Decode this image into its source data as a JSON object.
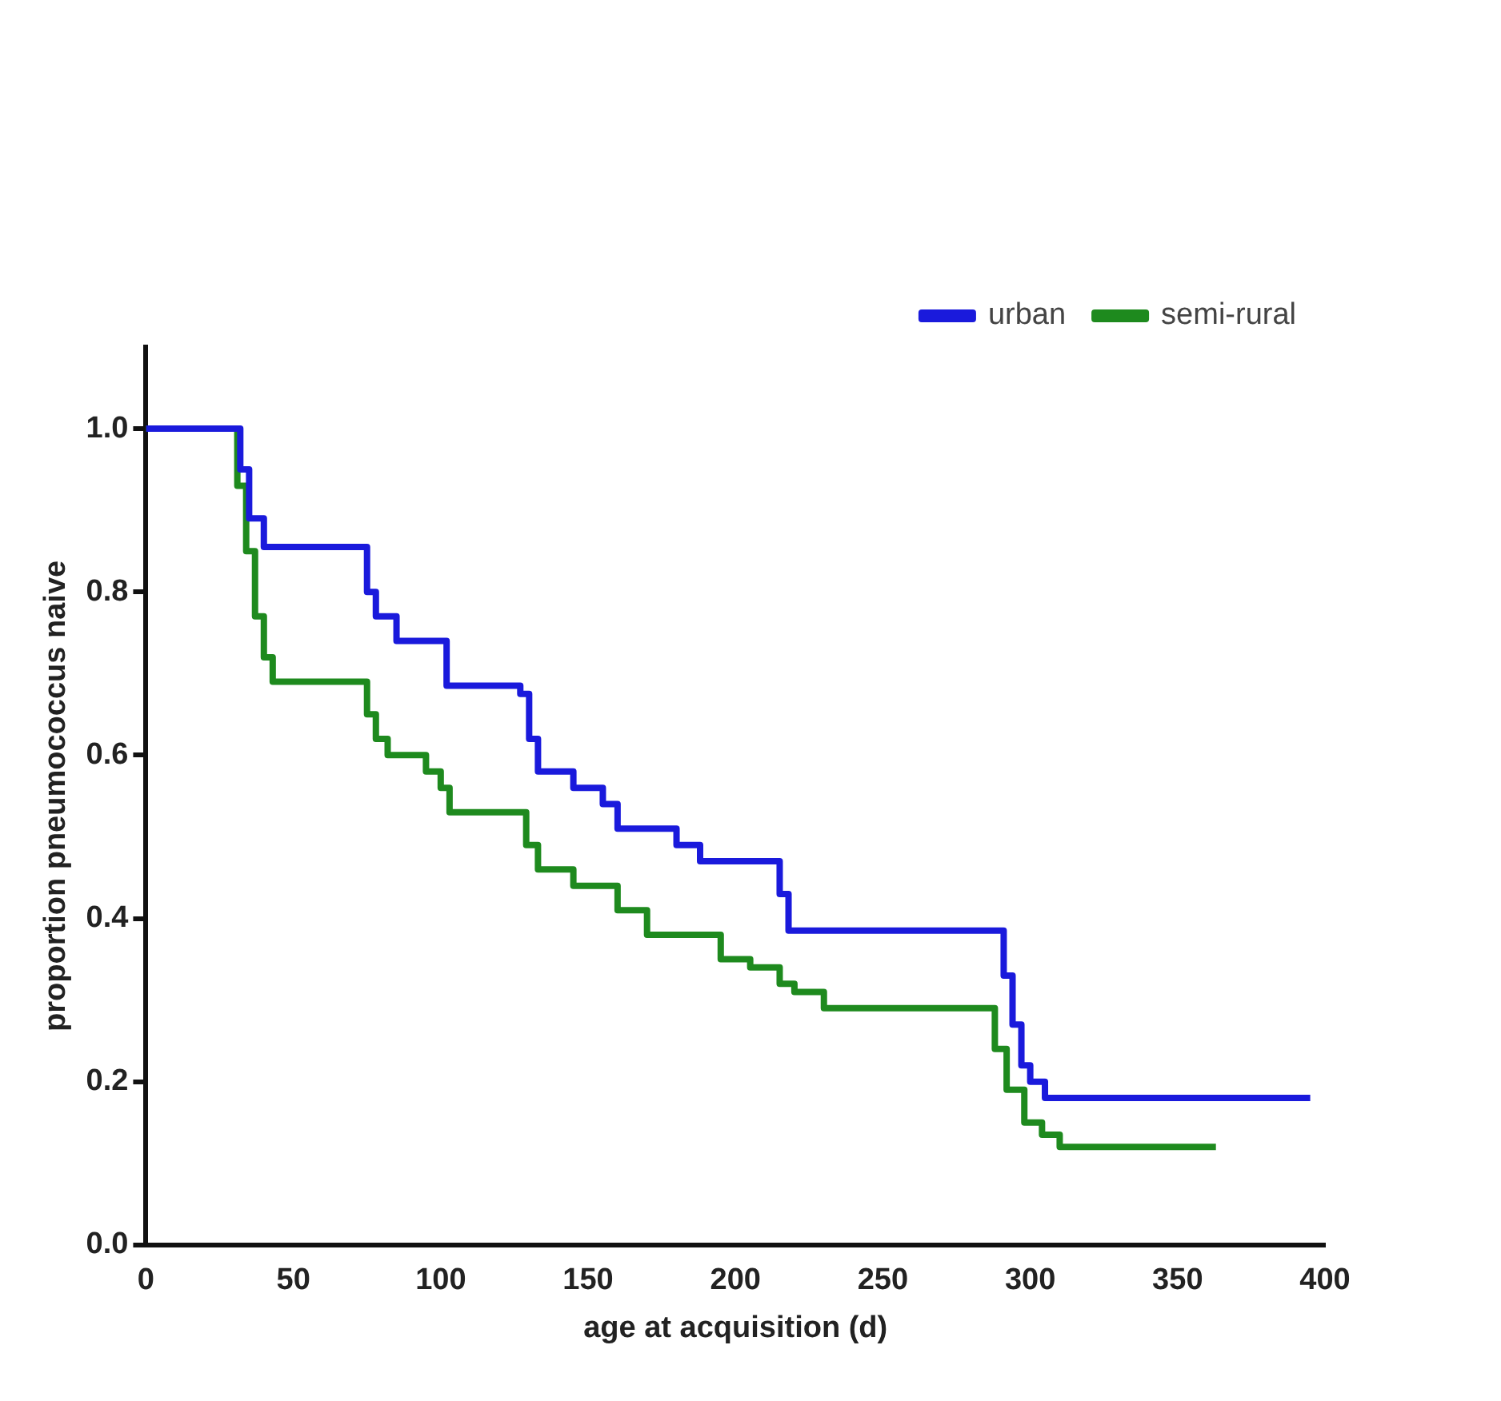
{
  "chart_data": {
    "type": "step",
    "xlabel": "age at acquisition (d)",
    "ylabel": "proportion pneumococcus naive",
    "xlim": [
      0,
      400
    ],
    "xticks": [
      0,
      50,
      100,
      150,
      200,
      250,
      300,
      350,
      400
    ],
    "ylim": [
      0,
      1.1
    ],
    "yticks": [
      {
        "value": 0,
        "label": "0.0"
      },
      0.2,
      0.4,
      0.6,
      0.8,
      {
        "value": 1,
        "label": "1.0"
      }
    ],
    "grid": false,
    "legend": "top right",
    "series": [
      {
        "name": "urban",
        "color": "#1a1adc",
        "x": [
          0,
          29,
          32,
          35,
          40,
          72,
          75,
          78,
          85,
          100,
          102,
          118,
          127,
          130,
          133,
          145,
          155,
          160,
          178,
          180,
          188,
          212,
          215,
          218,
          288,
          291,
          294,
          297,
          300,
          305,
          395
        ],
        "values": [
          1.0,
          1.0,
          0.95,
          0.89,
          0.855,
          0.855,
          0.8,
          0.77,
          0.74,
          0.74,
          0.685,
          0.685,
          0.675,
          0.62,
          0.58,
          0.56,
          0.54,
          0.51,
          0.51,
          0.49,
          0.47,
          0.47,
          0.43,
          0.385,
          0.385,
          0.33,
          0.27,
          0.22,
          0.2,
          0.18,
          0.18
        ]
      },
      {
        "name": "semi-rural",
        "color": "#1e8a1e",
        "x": [
          0,
          29,
          31,
          34,
          37,
          40,
          43,
          72,
          75,
          78,
          82,
          95,
          100,
          103,
          125,
          129,
          133,
          145,
          160,
          170,
          188,
          195,
          205,
          215,
          220,
          230,
          284,
          288,
          292,
          298,
          304,
          310,
          363
        ],
        "values": [
          1.0,
          1.0,
          0.93,
          0.85,
          0.77,
          0.72,
          0.69,
          0.69,
          0.65,
          0.62,
          0.6,
          0.58,
          0.56,
          0.53,
          0.53,
          0.49,
          0.46,
          0.44,
          0.41,
          0.38,
          0.38,
          0.35,
          0.34,
          0.32,
          0.31,
          0.29,
          0.29,
          0.24,
          0.19,
          0.15,
          0.135,
          0.12,
          0.12
        ]
      }
    ]
  }
}
